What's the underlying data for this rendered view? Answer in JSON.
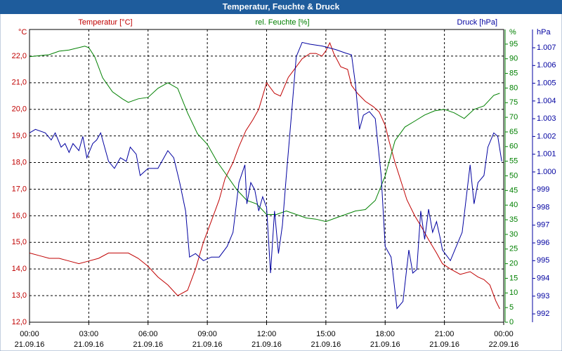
{
  "chart_data": {
    "type": "line",
    "title": "Temperatur, Feuchte & Druck",
    "grid": true,
    "xlim": [
      0,
      24
    ],
    "xticks": [
      {
        "value": 0,
        "label": "00:00"
      },
      {
        "value": 3,
        "label": "03:00"
      },
      {
        "value": 6,
        "label": "06:00"
      },
      {
        "value": 9,
        "label": "09:00"
      },
      {
        "value": 12,
        "label": "12:00"
      },
      {
        "value": 15,
        "label": "15:00"
      },
      {
        "value": 18,
        "label": "18:00"
      },
      {
        "value": 21,
        "label": "21:00"
      },
      {
        "value": 24,
        "label": "00:00"
      }
    ],
    "xtick_dates": [
      "21.09.16",
      "21.09.16",
      "21.09.16",
      "21.09.16",
      "21.09.16",
      "21.09.16",
      "21.09.16",
      "21.09.16",
      "22.09.16"
    ],
    "ylabel": "°C",
    "ylim": [
      12,
      23
    ],
    "yticks": [
      {
        "value": 12,
        "label": "12,0"
      },
      {
        "value": 13,
        "label": "13,0"
      },
      {
        "value": 14,
        "label": "14,0"
      },
      {
        "value": 15,
        "label": "15,0"
      },
      {
        "value": 16,
        "label": "16,0"
      },
      {
        "value": 17,
        "label": "17,0"
      },
      {
        "value": 18,
        "label": "18,0"
      },
      {
        "value": 19,
        "label": "19,0"
      },
      {
        "value": 20,
        "label": "20,0"
      },
      {
        "value": 21,
        "label": "21,0"
      },
      {
        "value": 22,
        "label": "22,0"
      }
    ],
    "y2label": "%",
    "y2lim": [
      0,
      100
    ],
    "y2ticks": [
      0,
      5,
      10,
      15,
      20,
      25,
      30,
      35,
      40,
      45,
      50,
      55,
      60,
      65,
      70,
      75,
      80,
      85,
      90,
      95
    ],
    "y3label": "hPa",
    "y3lim": [
      991.53,
      1008.03
    ],
    "y3ticks": [
      992,
      993,
      994,
      995,
      996,
      997,
      998,
      999,
      {
        "value": 1000,
        "label": "1.000"
      },
      {
        "value": 1001,
        "label": "1.001"
      },
      {
        "value": 1002,
        "label": "1.002"
      },
      {
        "value": 1003,
        "label": "1.003"
      },
      {
        "value": 1004,
        "label": "1.004"
      },
      {
        "value": 1005,
        "label": "1.005"
      },
      {
        "value": 1006,
        "label": "1.006"
      },
      {
        "value": 1007,
        "label": "1.007"
      }
    ],
    "series": [
      {
        "name": "Temperatur [°C]",
        "color": "#c00000",
        "axis": "y",
        "x": [
          0,
          0.5,
          1,
          1.5,
          2,
          2.5,
          3,
          3.5,
          4,
          4.5,
          5,
          5.5,
          6,
          6.5,
          7,
          7.5,
          8,
          8.4,
          8.8,
          9.2,
          9.6,
          9.9,
          10.3,
          10.6,
          10.95,
          11.3,
          11.6,
          12,
          12.4,
          12.7,
          13.1,
          13.4,
          13.8,
          14.2,
          14.5,
          14.8,
          15,
          15.2,
          15.4,
          15.75,
          16.1,
          16.3,
          16.6,
          17,
          17.4,
          17.7,
          18,
          18.2,
          18.5,
          18.8,
          19.1,
          19.5,
          19.9,
          20.2,
          20.6,
          20.9,
          21.3,
          21.8,
          22.3,
          22.7,
          23,
          23.3,
          23.6,
          23.8
        ],
        "values": [
          14.6,
          14.5,
          14.4,
          14.4,
          14.3,
          14.2,
          14.3,
          14.4,
          14.6,
          14.6,
          14.6,
          14.4,
          14.1,
          13.7,
          13.4,
          13.0,
          13.2,
          14.0,
          15.0,
          15.8,
          16.6,
          17.4,
          18.0,
          18.6,
          19.2,
          19.6,
          20.0,
          21.0,
          20.6,
          20.5,
          21.2,
          21.5,
          21.9,
          22.1,
          22.1,
          22.0,
          22.2,
          22.5,
          22.1,
          21.6,
          21.5,
          20.9,
          20.6,
          20.3,
          20.1,
          19.9,
          19.4,
          18.8,
          18.0,
          17.3,
          16.6,
          16.0,
          15.5,
          15.1,
          14.6,
          14.2,
          14.0,
          13.8,
          13.9,
          13.7,
          13.6,
          13.4,
          12.8,
          12.5
        ]
      },
      {
        "name": "rel. Feuchte [%]",
        "color": "#008000",
        "axis": "y2",
        "x": [
          0,
          1,
          1.5,
          2,
          2.8,
          3,
          3.3,
          3.7,
          4.2,
          4.7,
          5,
          5.5,
          6,
          6.5,
          7,
          7.5,
          8,
          8.5,
          9,
          9.5,
          10,
          10.5,
          11,
          11.5,
          12,
          12.5,
          13,
          13.5,
          14,
          14.5,
          15,
          15.5,
          16,
          16.5,
          17,
          17.5,
          18,
          18.5,
          19,
          19.5,
          20,
          20.5,
          21,
          21.5,
          22,
          22.5,
          23,
          23.5,
          23.8
        ],
        "values": [
          90.7,
          91.4,
          92.6,
          93,
          94.3,
          93.8,
          90.7,
          83.5,
          78.7,
          76.3,
          75.1,
          76.3,
          76.8,
          79.9,
          81.8,
          79.9,
          71.5,
          64.4,
          60.8,
          54.8,
          50,
          45.2,
          41.6,
          40.4,
          36.8,
          36.8,
          38,
          36.8,
          35.6,
          35.2,
          34.4,
          35.6,
          36.8,
          38,
          38.5,
          41.6,
          50,
          62,
          66.7,
          68.7,
          70.8,
          72.2,
          72.7,
          71.5,
          69.6,
          72.7,
          73.9,
          77.5,
          78.2
        ]
      },
      {
        "name": "Druck [hPa]",
        "color": "#0000a0",
        "axis": "y3",
        "x": [
          0,
          0.3,
          0.8,
          1.1,
          1.3,
          1.6,
          1.8,
          2.0,
          2.2,
          2.5,
          2.7,
          2.9,
          3.2,
          3.4,
          3.6,
          3.8,
          4.0,
          4.3,
          4.6,
          4.9,
          5.1,
          5.4,
          5.6,
          6.0,
          6.5,
          6.8,
          7.0,
          7.3,
          7.6,
          7.9,
          8.1,
          8.4,
          8.8,
          9.2,
          9.6,
          10.0,
          10.3,
          10.6,
          10.9,
          11.0,
          11.2,
          11.4,
          11.6,
          11.8,
          12.0,
          12.2,
          12.4,
          12.6,
          12.8,
          13.0,
          13.3,
          13.5,
          13.8,
          14.2,
          14.8,
          15.5,
          16.0,
          16.3,
          16.5,
          16.7,
          16.9,
          17.2,
          17.5,
          17.8,
          18.0,
          18.3,
          18.6,
          18.9,
          19.2,
          19.4,
          19.6,
          19.8,
          20.0,
          20.2,
          20.4,
          20.6,
          20.8,
          20.9,
          21.3,
          21.6,
          21.9,
          22.3,
          22.5,
          22.7,
          23.0,
          23.2,
          23.5,
          23.7,
          23.9
        ],
        "values": [
          1002.2,
          1002.4,
          1002.2,
          1001.8,
          1002.2,
          1001.4,
          1001.6,
          1001.1,
          1001.6,
          1001.2,
          1002.0,
          1000.8,
          1001.6,
          1001.8,
          1002.2,
          1001.4,
          1000.6,
          1000.2,
          1000.8,
          1000.6,
          1001.4,
          1001.0,
          999.8,
          1000.2,
          1000.2,
          1000.8,
          1001.2,
          1000.8,
          999.4,
          997.8,
          995.2,
          995.4,
          995.0,
          995.2,
          995.2,
          995.8,
          996.6,
          999.4,
          1000.4,
          998.2,
          999.4,
          999.0,
          997.8,
          998.6,
          998.0,
          994.3,
          997.8,
          995.4,
          997.0,
          999.8,
          1003.8,
          1006.5,
          1007.3,
          1007.2,
          1007.1,
          1006.9,
          1006.7,
          1006.6,
          1004.9,
          1002.4,
          1003.2,
          1003.4,
          1003.0,
          999.8,
          995.8,
          995.2,
          992.3,
          992.7,
          995.6,
          994.3,
          994.5,
          997.8,
          996.2,
          997.9,
          996.6,
          997.2,
          996.2,
          995.6,
          995.0,
          995.8,
          996.6,
          1000.4,
          998.2,
          999.4,
          999.8,
          1001.4,
          1002.2,
          1002.0,
          1000.6
        ]
      }
    ]
  }
}
